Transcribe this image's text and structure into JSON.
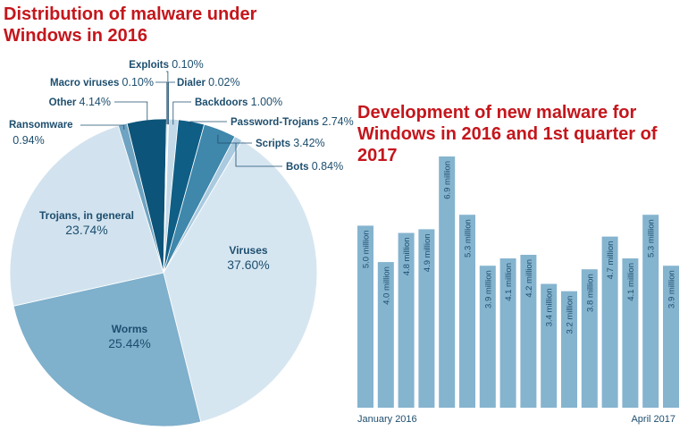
{
  "chart_data": [
    {
      "type": "pie",
      "title": "Distribution of malware under Windows in 2016",
      "slices": [
        {
          "name": "Exploits",
          "value": 0.1,
          "label": "0.10%"
        },
        {
          "name": "Dialer",
          "value": 0.02,
          "label": "0.02%"
        },
        {
          "name": "Backdoors",
          "value": 1.0,
          "label": "1.00%"
        },
        {
          "name": "Password-Trojans",
          "value": 2.74,
          "label": "2.74%"
        },
        {
          "name": "Scripts",
          "value": 3.42,
          "label": "3.42%"
        },
        {
          "name": "Bots",
          "value": 0.84,
          "label": "0.84%"
        },
        {
          "name": "Viruses",
          "value": 37.6,
          "label": "37.60%"
        },
        {
          "name": "Worms",
          "value": 25.44,
          "label": "25.44%"
        },
        {
          "name": "Trojans, in general",
          "value": 23.74,
          "label": "23.74%"
        },
        {
          "name": "Ransomware",
          "value": 0.94,
          "label": "0.94%"
        },
        {
          "name": "Other",
          "value": 4.14,
          "label": "4.14%"
        },
        {
          "name": "Macro viruses",
          "value": 0.1,
          "label": "0.10%"
        }
      ],
      "colors": {
        "Exploits": "#8fb8d4",
        "Dialer": "#9dc1da",
        "Backdoors": "#c3d9e8",
        "Password-Trojans": "#0f5e85",
        "Scripts": "#3f87ab",
        "Bots": "#a9cadf",
        "Viruses": "#d6e6f1",
        "Worms": "#7fb0cc",
        "Trojans, in general": "#d2e3ef",
        "Ransomware": "#6fa3c2",
        "Other": "#0c5479",
        "Macro viruses": "#2f7aa2"
      }
    },
    {
      "type": "bar",
      "title": "Development of new malware for Windows in 2016 and 1st quarter of 2017",
      "categories": [
        "January 2016",
        "",
        "",
        "",
        "",
        "",
        "",
        "",
        "",
        "",
        "",
        "",
        "",
        "",
        "",
        "April 2017"
      ],
      "values": [
        5.0,
        4.0,
        4.8,
        4.9,
        6.9,
        5.3,
        3.9,
        4.1,
        4.2,
        3.4,
        3.2,
        3.8,
        4.7,
        4.1,
        5.3,
        3.9
      ],
      "value_labels": [
        "5.0 million",
        "4.0 million",
        "4.8 million",
        "4.9 million",
        "6.9 million",
        "5.3 million",
        "3.9 million",
        "4.1 million",
        "4.2 million",
        "3.4 million",
        "3.2 million",
        "3.8 million",
        "4.7 million",
        "4.1 million",
        "5.3 million",
        "3.9 million"
      ],
      "x_start_label": "January 2016",
      "x_end_label": "April 2017",
      "ylim": [
        0,
        6.9
      ],
      "bar_color": "#85b4cf"
    }
  ]
}
